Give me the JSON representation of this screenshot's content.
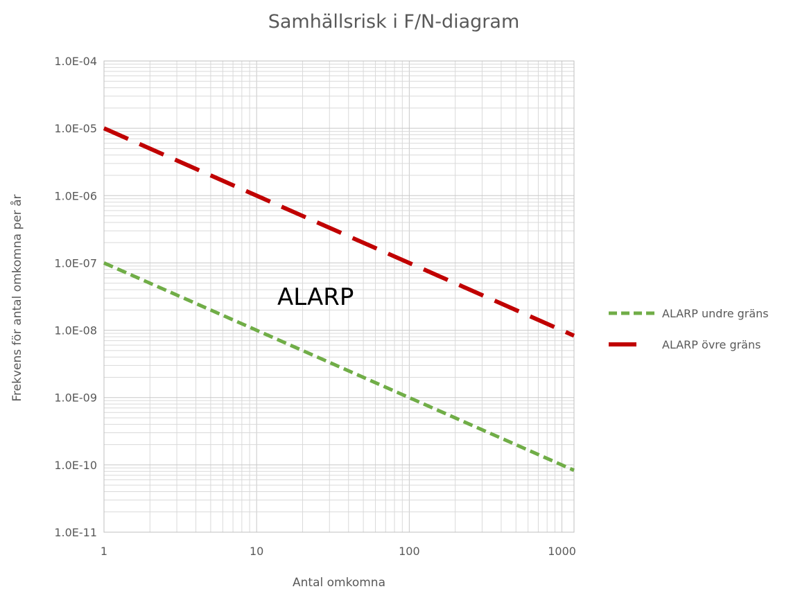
{
  "chart_data": {
    "type": "line",
    "title": "Samhällsrisk i F/N-diagram",
    "xlabel": "Antal omkomna",
    "ylabel": "Frekvens för antal omkomna per år",
    "xscale": "log",
    "yscale": "log",
    "xlim": [
      1,
      1200
    ],
    "ylim": [
      1e-11,
      0.0001
    ],
    "xticks": [
      1,
      10,
      100,
      1000
    ],
    "xtick_labels": [
      "1",
      "10",
      "100",
      "1000"
    ],
    "yticks": [
      1e-11,
      1e-10,
      1e-09,
      1e-08,
      1e-07,
      1e-06,
      1e-05,
      0.0001
    ],
    "ytick_labels": [
      "1.0E-11",
      "1.0E-10",
      "1.0E-09",
      "1.0E-08",
      "1.0E-07",
      "1.0E-06",
      "1.0E-05",
      "1.0E-04"
    ],
    "grid": true,
    "legend_position": "right",
    "annotations": [
      "ALARP"
    ],
    "series": [
      {
        "name": "ALARP undre gräns",
        "x": [
          1,
          1200
        ],
        "y": [
          1e-07,
          8.3e-11
        ],
        "color": "#70ad47",
        "style": "dashed"
      },
      {
        "name": "ALARP övre gräns",
        "x": [
          1,
          1200
        ],
        "y": [
          1e-05,
          8.3e-09
        ],
        "color": "#c00000",
        "style": "long-dash"
      }
    ]
  }
}
